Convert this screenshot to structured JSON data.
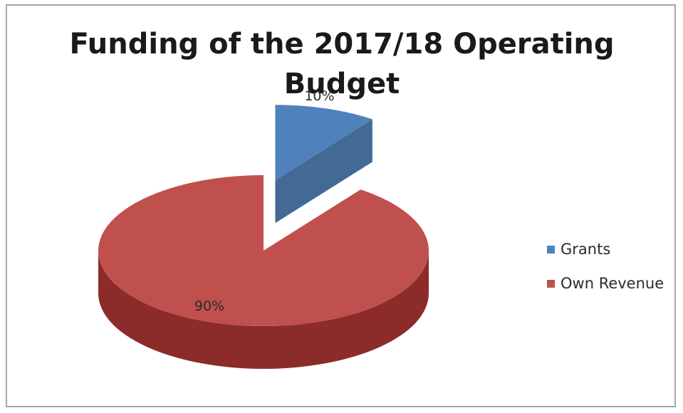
{
  "chart_data": {
    "type": "pie",
    "title_lines": [
      "Funding of the 2017/18 Operating",
      "Budget"
    ],
    "series": [
      {
        "name": "Grants",
        "value": 10,
        "label": "10%",
        "color": "#4f81bd",
        "side_color": "#2f5a88"
      },
      {
        "name": "Own Revenue",
        "value": 90,
        "label": "90%",
        "color": "#c0504d",
        "side_color": "#8b2c2a"
      }
    ],
    "legend_position": "right",
    "exploded_slice": "Grants",
    "style": "3d"
  }
}
